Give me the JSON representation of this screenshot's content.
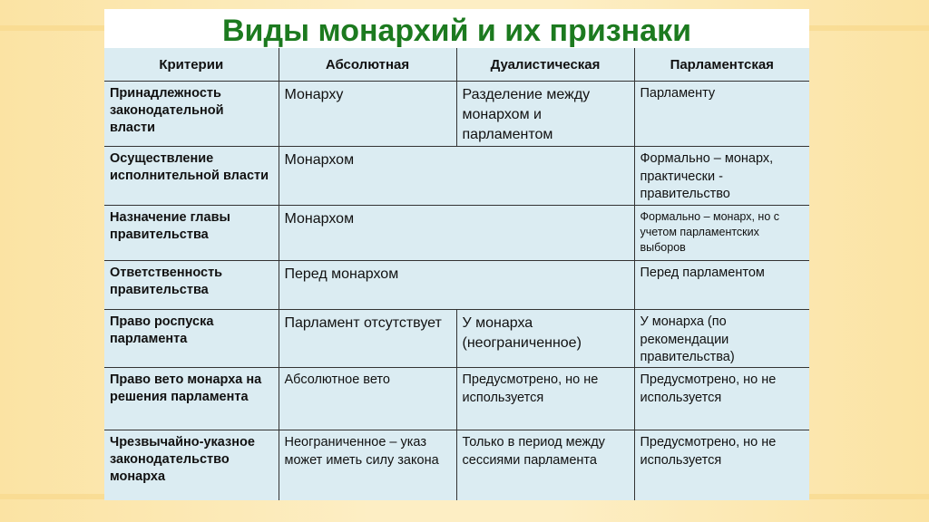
{
  "title": "Виды монархий и их признаки",
  "table": {
    "headers": [
      "Критерии",
      "Абсолютная",
      "Дуалистическая",
      "Парламентская"
    ],
    "rows": [
      {
        "criterion": "Принадлежность законодательной власти",
        "absolute": "Монарху",
        "dualistic": "Разделение между монархом и парламентом",
        "parliamentary": "Парламенту"
      },
      {
        "criterion": "Осуществление исполнительной власти",
        "absolute_dualistic": "Монархом",
        "parliamentary": "Формально – монарх, практически - правительство"
      },
      {
        "criterion": "Назначение главы правительства",
        "absolute_dualistic": "Монархом",
        "parliamentary": "Формально – монарх, но с учетом парламентских выборов"
      },
      {
        "criterion": "Ответственность правительства",
        "absolute_dualistic": "Перед монархом",
        "parliamentary": "Перед парламентом"
      },
      {
        "criterion": "Право роспуска парламента",
        "absolute": "Парламент отсутствует",
        "dualistic": "У монарха (неограниченное)",
        "parliamentary": "У монарха (по рекомендации правительства)"
      },
      {
        "criterion": "Право вето монарха на решения парламента",
        "absolute": "Абсолютное вето",
        "dualistic": "Предусмотрено, но не используется",
        "parliamentary": "Предусмотрено, но не используется"
      },
      {
        "criterion": "Чрезвычайно-указное законодательство монарха",
        "absolute": "Неограниченное – указ может иметь силу закона",
        "dualistic": "Только в период между сессиями парламента",
        "parliamentary": "Предусмотрено, но не используется"
      }
    ]
  },
  "colors": {
    "title": "#1c7a1f",
    "table_bg": "#dbecf2",
    "background": "#fdeec4"
  }
}
